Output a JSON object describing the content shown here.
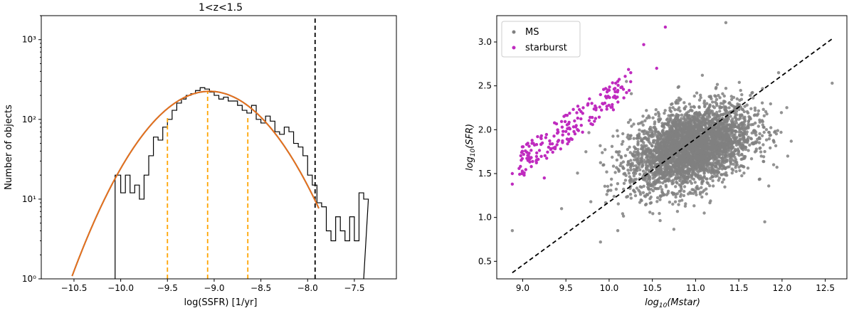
{
  "chart_data": [
    {
      "type": "histogram",
      "title": "1<z<1.5",
      "xlabel": "log(SSFR) [1/yr]",
      "ylabel": "Number of objects",
      "xlim": [
        -10.85,
        -7.05
      ],
      "ylim": [
        1,
        2000
      ],
      "yscale": "log",
      "grid": false,
      "xticks": [
        -10.5,
        -10.0,
        -9.5,
        -9.0,
        -8.5,
        -8.0,
        -7.5
      ],
      "xtick_labels": [
        "−10.5",
        "−10.0",
        "−9.5",
        "−9.0",
        "−8.5",
        "−8.0",
        "−7.5"
      ],
      "yticks": [
        1,
        10,
        100,
        1000
      ],
      "ytick_labels": [
        "10⁰",
        "10¹",
        "10²",
        "10³"
      ],
      "histogram": {
        "color": "#000000",
        "bins_x": [
          -10.06,
          -10.0,
          -9.95,
          -9.9,
          -9.85,
          -9.8,
          -9.75,
          -9.7,
          -9.65,
          -9.6,
          -9.55,
          -9.5,
          -9.45,
          -9.4,
          -9.35,
          -9.3,
          -9.25,
          -9.2,
          -9.15,
          -9.1,
          -9.05,
          -9.0,
          -8.95,
          -8.9,
          -8.85,
          -8.8,
          -8.75,
          -8.7,
          -8.65,
          -8.6,
          -8.55,
          -8.5,
          -8.45,
          -8.4,
          -8.35,
          -8.3,
          -8.25,
          -8.2,
          -8.15,
          -8.1,
          -8.05,
          -8.0,
          -7.95,
          -7.9,
          -7.85,
          -7.8,
          -7.75,
          -7.7,
          -7.65,
          -7.6,
          -7.55,
          -7.5,
          -7.45,
          -7.4
        ],
        "counts": [
          20,
          12,
          20,
          12,
          15,
          10,
          20,
          35,
          60,
          55,
          80,
          100,
          130,
          160,
          180,
          200,
          210,
          230,
          250,
          240,
          220,
          200,
          180,
          190,
          170,
          170,
          150,
          130,
          120,
          150,
          100,
          90,
          110,
          95,
          70,
          65,
          80,
          70,
          50,
          45,
          35,
          20,
          15,
          9,
          8,
          4,
          3,
          6,
          4,
          3,
          6,
          3,
          12,
          10
        ]
      },
      "fit_curve": {
        "color": "#e8701a",
        "shape": "gaussian",
        "peak": 225,
        "mean": -9.05,
        "sigma": 0.45,
        "x_range": [
          -10.52,
          -7.88
        ]
      },
      "vertical_lines": [
        {
          "x": -9.5,
          "color": "#ffa500",
          "style": "dashed",
          "y_top": 110
        },
        {
          "x": -9.07,
          "color": "#ffa500",
          "style": "dashed",
          "y_top": 225
        },
        {
          "x": -8.64,
          "color": "#ffa500",
          "style": "dashed",
          "y_top": 110
        },
        {
          "x": -7.92,
          "color": "#000000",
          "style": "dashed",
          "y_top": 2000
        }
      ]
    },
    {
      "type": "scatter",
      "xlabel": "log10(Mstar)",
      "ylabel": "log10(SFR)",
      "xlim": [
        8.7,
        12.75
      ],
      "ylim": [
        0.3,
        3.3
      ],
      "grid": false,
      "legend_position": "top-left",
      "xticks": [
        9.0,
        9.5,
        10.0,
        10.5,
        11.0,
        11.5,
        12.0,
        12.5
      ],
      "xtick_labels": [
        "9.0",
        "9.5",
        "10.0",
        "10.5",
        "11.0",
        "11.5",
        "12.0",
        "12.5"
      ],
      "yticks": [
        0.5,
        1.0,
        1.5,
        2.0,
        2.5,
        3.0
      ],
      "ytick_labels": [
        "0.5",
        "1.0",
        "1.5",
        "2.0",
        "2.5",
        "3.0"
      ],
      "series": [
        {
          "name": "MS",
          "color": "#808080",
          "approx_count": 3500,
          "center": [
            10.95,
            1.8
          ],
          "spread": [
            0.35,
            0.22
          ],
          "sample_points": [
            [
              8.88,
              0.85
            ],
            [
              9.45,
              1.1
            ],
            [
              9.9,
              0.72
            ],
            [
              10.1,
              0.85
            ],
            [
              12.58,
              2.53
            ],
            [
              11.96,
              2.65
            ],
            [
              11.35,
              3.22
            ],
            [
              10.2,
              2.55
            ],
            [
              11.8,
              0.95
            ],
            [
              11.1,
              1.05
            ]
          ]
        },
        {
          "name": "starburst",
          "color": "#bf2bbf",
          "approx_count": 180,
          "sample_points": [
            [
              8.88,
              1.5
            ],
            [
              8.88,
              1.38
            ],
            [
              9.1,
              1.58
            ],
            [
              9.3,
              1.8
            ],
            [
              9.5,
              1.98
            ],
            [
              9.6,
              2.1
            ],
            [
              9.7,
              2.25
            ],
            [
              9.8,
              2.3
            ],
            [
              9.9,
              2.4
            ],
            [
              10.0,
              2.45
            ],
            [
              10.1,
              2.55
            ],
            [
              10.25,
              2.65
            ],
            [
              10.4,
              2.97
            ],
            [
              10.65,
              3.17
            ],
            [
              10.55,
              2.7
            ],
            [
              9.25,
              1.45
            ]
          ]
        }
      ],
      "reference_line": {
        "x": [
          8.88,
          12.6
        ],
        "y": [
          0.37,
          3.05
        ],
        "color": "#000000",
        "style": "dashed"
      }
    }
  ]
}
